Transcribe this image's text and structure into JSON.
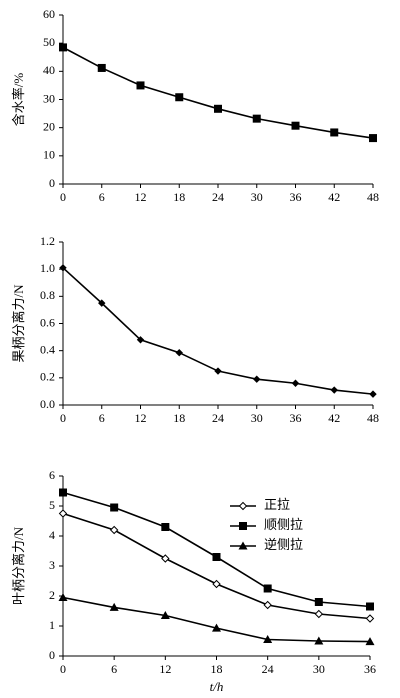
{
  "chart_data": [
    {
      "type": "line",
      "ylabel": "含水率/%",
      "x": [
        0,
        6,
        12,
        18,
        24,
        30,
        36,
        42,
        48
      ],
      "values": [
        48.5,
        41.2,
        35.0,
        30.8,
        26.7,
        23.2,
        20.7,
        18.3,
        16.3
      ],
      "color": "#000000",
      "marker": "square",
      "xlim": [
        0,
        48
      ],
      "xticks": [
        0,
        6,
        12,
        18,
        24,
        30,
        36,
        42,
        48
      ],
      "ylim": [
        0,
        60
      ],
      "yticks": [
        0,
        10,
        20,
        30,
        40,
        50,
        60
      ]
    },
    {
      "type": "line",
      "ylabel": "果柄分离力/N",
      "x": [
        0,
        6,
        12,
        18,
        24,
        30,
        36,
        42,
        48
      ],
      "values": [
        1.01,
        0.75,
        0.48,
        0.385,
        0.25,
        0.19,
        0.16,
        0.11,
        0.08
      ],
      "color": "#000000",
      "marker": "diamond",
      "xlim": [
        0,
        48
      ],
      "xticks": [
        0,
        6,
        12,
        18,
        24,
        30,
        36,
        42,
        48
      ],
      "ylim": [
        0,
        1.2
      ],
      "yticks": [
        {
          "value": 0,
          "label": "0.0"
        },
        0.2,
        0.4,
        0.6,
        0.8,
        {
          "value": 1,
          "label": "1.0"
        },
        1.2
      ]
    },
    {
      "type": "line",
      "ylabel": "叶柄分离力/N",
      "xlabel": "t/h",
      "x": [
        0,
        6,
        12,
        18,
        24,
        30,
        36
      ],
      "series": [
        {
          "name": "正拉",
          "color": "#000000",
          "marker": "diamond-open",
          "values": [
            4.75,
            4.2,
            3.25,
            2.4,
            1.7,
            1.4,
            1.25
          ]
        },
        {
          "name": "顺侧拉",
          "color": "#000000",
          "marker": "square",
          "values": [
            5.45,
            4.95,
            4.3,
            3.3,
            2.25,
            1.8,
            1.65
          ]
        },
        {
          "name": "逆侧拉",
          "color": "#000000",
          "marker": "triangle",
          "values": [
            1.95,
            1.62,
            1.35,
            0.93,
            0.55,
            0.5,
            0.48
          ]
        }
      ],
      "xlim": [
        0,
        36
      ],
      "xticks": [
        0,
        6,
        12,
        18,
        24,
        30,
        36
      ],
      "ylim": [
        0,
        6
      ],
      "yticks": [
        0,
        1,
        2,
        3,
        4,
        5,
        6
      ],
      "legend": "upper right"
    }
  ]
}
